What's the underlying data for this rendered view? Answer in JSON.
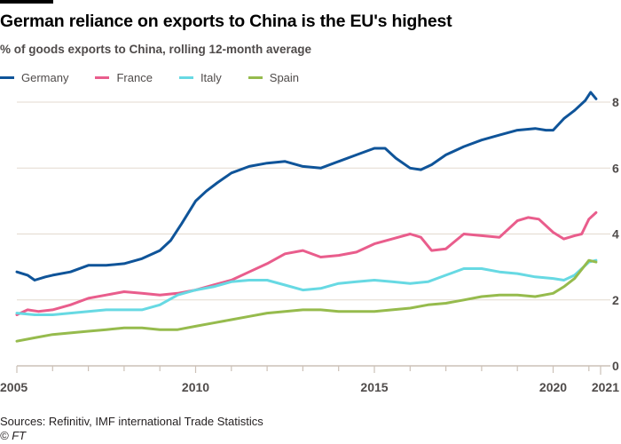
{
  "header": {
    "title": "German reliance on exports to China is the EU's highest",
    "subtitle": "% of goods exports to China, rolling 12-month average"
  },
  "legend": [
    {
      "label": "Germany",
      "color": "#0f5499"
    },
    {
      "label": "France",
      "color": "#e95d8c"
    },
    {
      "label": "Italy",
      "color": "#67d9e3"
    },
    {
      "label": "Spain",
      "color": "#96bb4d"
    }
  ],
  "footer": {
    "source": "Sources: Refinitiv, IMF international Trade Statistics",
    "copyright": "© FT"
  },
  "chart_data": {
    "type": "line",
    "title": "German reliance on exports to China is the EU's highest",
    "subtitle": "% of goods exports to China, rolling 12-month average",
    "xlabel": "",
    "ylabel": "",
    "xlim": [
      2005,
      2021.2
    ],
    "ylim": [
      0,
      8
    ],
    "yticks": [
      0,
      2,
      4,
      6,
      8
    ],
    "xticks": [
      2005,
      2010,
      2015,
      2020,
      2021
    ],
    "xtick_labels": [
      "2005",
      "2010",
      "2015",
      "2020",
      "2021"
    ],
    "grid": true,
    "legend_position": "top-left",
    "series": [
      {
        "name": "Germany",
        "color": "#0f5499",
        "x": [
          2005,
          2005.3,
          2005.5,
          2005.8,
          2006,
          2006.5,
          2007,
          2007.5,
          2008,
          2008.5,
          2009,
          2009.3,
          2009.6,
          2010,
          2010.3,
          2010.6,
          2011,
          2011.5,
          2012,
          2012.5,
          2013,
          2013.5,
          2014,
          2014.5,
          2015,
          2015.3,
          2015.6,
          2016,
          2016.3,
          2016.6,
          2017,
          2017.5,
          2018,
          2018.5,
          2019,
          2019.5,
          2019.8,
          2020,
          2020.3,
          2020.6,
          2020.9,
          2021.05,
          2021.2
        ],
        "values": [
          2.85,
          2.75,
          2.6,
          2.7,
          2.75,
          2.85,
          3.05,
          3.05,
          3.1,
          3.25,
          3.5,
          3.8,
          4.3,
          5.0,
          5.3,
          5.55,
          5.85,
          6.05,
          6.15,
          6.2,
          6.05,
          6.0,
          6.2,
          6.4,
          6.6,
          6.6,
          6.3,
          6.0,
          5.95,
          6.1,
          6.4,
          6.65,
          6.85,
          7.0,
          7.15,
          7.2,
          7.15,
          7.15,
          7.5,
          7.75,
          8.05,
          8.3,
          8.1
        ]
      },
      {
        "name": "France",
        "color": "#e95d8c",
        "x": [
          2005,
          2005.3,
          2005.6,
          2006,
          2006.5,
          2007,
          2007.5,
          2008,
          2008.5,
          2009,
          2009.5,
          2010,
          2010.5,
          2011,
          2011.5,
          2012,
          2012.5,
          2013,
          2013.5,
          2014,
          2014.5,
          2015,
          2015.5,
          2016,
          2016.3,
          2016.6,
          2017,
          2017.5,
          2018,
          2018.5,
          2019,
          2019.3,
          2019.6,
          2020,
          2020.3,
          2020.6,
          2020.8,
          2021,
          2021.2
        ],
        "values": [
          1.55,
          1.7,
          1.65,
          1.7,
          1.85,
          2.05,
          2.15,
          2.25,
          2.2,
          2.15,
          2.2,
          2.3,
          2.45,
          2.6,
          2.85,
          3.1,
          3.4,
          3.5,
          3.3,
          3.35,
          3.45,
          3.7,
          3.85,
          4.0,
          3.9,
          3.5,
          3.55,
          4.0,
          3.95,
          3.9,
          4.4,
          4.5,
          4.45,
          4.05,
          3.85,
          3.95,
          4.0,
          4.45,
          4.65
        ]
      },
      {
        "name": "Italy",
        "color": "#67d9e3",
        "x": [
          2005,
          2005.5,
          2006,
          2006.5,
          2007,
          2007.5,
          2008,
          2008.5,
          2009,
          2009.5,
          2010,
          2010.5,
          2011,
          2011.5,
          2012,
          2012.5,
          2013,
          2013.5,
          2014,
          2014.5,
          2015,
          2015.5,
          2016,
          2016.5,
          2017,
          2017.5,
          2018,
          2018.5,
          2019,
          2019.5,
          2020,
          2020.3,
          2020.6,
          2021,
          2021.2
        ],
        "values": [
          1.6,
          1.55,
          1.55,
          1.6,
          1.65,
          1.7,
          1.7,
          1.7,
          1.85,
          2.15,
          2.3,
          2.4,
          2.55,
          2.6,
          2.6,
          2.45,
          2.3,
          2.35,
          2.5,
          2.55,
          2.6,
          2.55,
          2.5,
          2.55,
          2.75,
          2.95,
          2.95,
          2.85,
          2.8,
          2.7,
          2.65,
          2.6,
          2.75,
          3.15,
          3.2
        ]
      },
      {
        "name": "Spain",
        "color": "#96bb4d",
        "x": [
          2005,
          2005.5,
          2006,
          2006.5,
          2007,
          2007.5,
          2008,
          2008.5,
          2009,
          2009.5,
          2010,
          2010.5,
          2011,
          2011.5,
          2012,
          2012.5,
          2013,
          2013.5,
          2014,
          2014.5,
          2015,
          2015.5,
          2016,
          2016.5,
          2017,
          2017.5,
          2018,
          2018.5,
          2019,
          2019.5,
          2020,
          2020.3,
          2020.6,
          2021,
          2021.2
        ],
        "values": [
          0.75,
          0.85,
          0.95,
          1.0,
          1.05,
          1.1,
          1.15,
          1.15,
          1.1,
          1.1,
          1.2,
          1.3,
          1.4,
          1.5,
          1.6,
          1.65,
          1.7,
          1.7,
          1.65,
          1.65,
          1.65,
          1.7,
          1.75,
          1.85,
          1.9,
          2.0,
          2.1,
          2.15,
          2.15,
          2.1,
          2.2,
          2.4,
          2.65,
          3.2,
          3.15
        ]
      }
    ]
  }
}
